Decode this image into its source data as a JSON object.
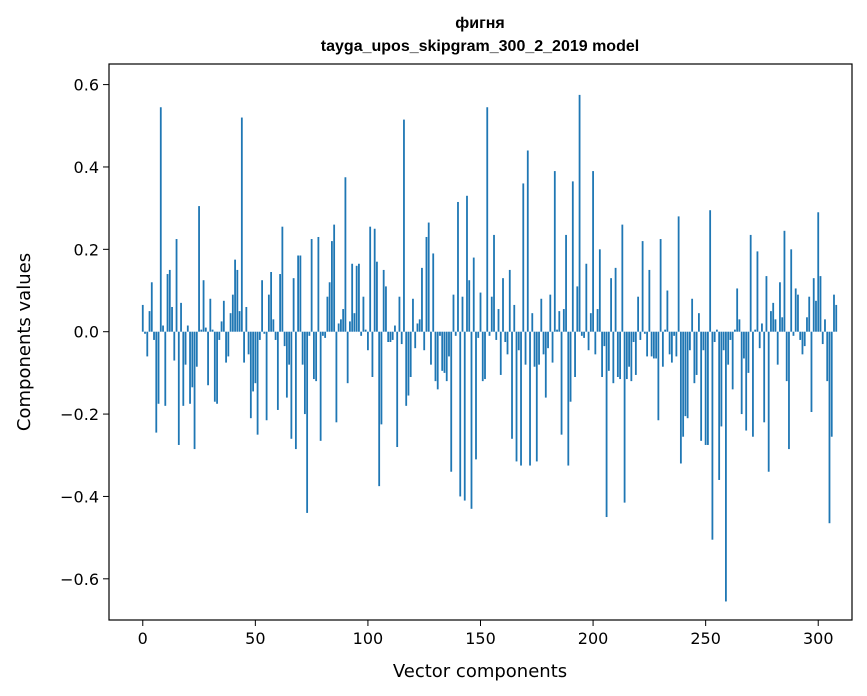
{
  "chart_data": {
    "type": "bar",
    "title": "фигня",
    "subtitle": "tayga_upos_skipgram_300_2_2019 model",
    "xlabel": "Vector components",
    "ylabel": "Components values",
    "xlim": [
      -15,
      315
    ],
    "ylim": [
      -0.7,
      0.65
    ],
    "xticks": [
      0,
      50,
      100,
      150,
      200,
      250,
      300
    ],
    "xtick_labels": [
      "0",
      "50",
      "100",
      "150",
      "200",
      "250",
      "300"
    ],
    "yticks": [
      0.6,
      0.4,
      0.2,
      0.0,
      -0.2,
      -0.4,
      -0.6
    ],
    "ytick_labels": [
      "0.6",
      "0.4",
      "0.2",
      "0.0",
      "−0.2",
      "−0.4",
      "−0.6"
    ],
    "grid": false,
    "bar_color": "#1f77b4",
    "series": [
      {
        "name": "Components values",
        "values": [
          0.065,
          -0.005,
          -0.06,
          0.05,
          0.12,
          -0.02,
          -0.245,
          -0.175,
          0.545,
          0.015,
          -0.18,
          0.14,
          0.15,
          0.06,
          -0.07,
          0.225,
          -0.275,
          0.07,
          -0.18,
          -0.08,
          0.015,
          -0.175,
          -0.135,
          -0.285,
          -0.085,
          0.305,
          0.005,
          0.125,
          0.01,
          -0.13,
          0.08,
          0.005,
          -0.17,
          -0.175,
          -0.02,
          0.025,
          0.075,
          -0.075,
          -0.06,
          0.045,
          0.09,
          0.175,
          0.15,
          0.05,
          0.52,
          -0.075,
          0.06,
          -0.055,
          -0.21,
          -0.145,
          -0.125,
          -0.25,
          -0.02,
          0.125,
          -0.005,
          -0.215,
          0.09,
          0.145,
          0.03,
          -0.02,
          -0.19,
          0.14,
          0.255,
          -0.035,
          -0.16,
          -0.08,
          -0.26,
          0.13,
          -0.285,
          0.185,
          0.185,
          -0.08,
          -0.2,
          -0.44,
          -0.01,
          0.225,
          -0.115,
          -0.12,
          0.23,
          -0.265,
          -0.01,
          -0.015,
          0.085,
          0.12,
          0.22,
          0.26,
          -0.22,
          0.02,
          0.03,
          0.055,
          0.375,
          -0.125,
          0.025,
          0.165,
          0.045,
          0.16,
          0.165,
          -0.01,
          0.085,
          0.005,
          -0.045,
          0.255,
          -0.11,
          0.25,
          0.17,
          -0.375,
          -0.225,
          0.15,
          0.11,
          -0.025,
          -0.025,
          -0.02,
          0.015,
          -0.28,
          0.085,
          -0.03,
          0.515,
          -0.18,
          -0.155,
          -0.11,
          0.08,
          -0.04,
          0.02,
          0.03,
          0.155,
          -0.045,
          0.23,
          0.265,
          -0.08,
          0.19,
          -0.12,
          -0.14,
          -0.01,
          -0.095,
          -0.1,
          -0.12,
          -0.06,
          -0.34,
          0.09,
          -0.01,
          0.315,
          -0.4,
          0.085,
          -0.41,
          0.33,
          0.125,
          -0.43,
          0.18,
          -0.31,
          -0.015,
          0.095,
          -0.12,
          -0.115,
          0.545,
          -0.01,
          0.085,
          0.235,
          -0.02,
          0.055,
          -0.105,
          0.13,
          -0.025,
          -0.055,
          0.15,
          -0.26,
          0.065,
          -0.315,
          -0.045,
          -0.325,
          0.36,
          -0.08,
          0.44,
          -0.325,
          0.045,
          -0.085,
          -0.315,
          -0.08,
          0.08,
          -0.055,
          -0.16,
          -0.04,
          0.09,
          -0.075,
          0.39,
          0.005,
          0.05,
          -0.25,
          0.055,
          0.235,
          -0.325,
          -0.17,
          0.365,
          -0.11,
          0.11,
          0.575,
          -0.01,
          -0.015,
          0.165,
          -0.045,
          0.045,
          0.39,
          -0.055,
          0.055,
          0.2,
          -0.11,
          -0.035,
          -0.45,
          -0.095,
          0.13,
          -0.125,
          0.155,
          -0.11,
          -0.115,
          0.26,
          -0.415,
          -0.115,
          -0.085,
          -0.12,
          -0.025,
          -0.105,
          0.085,
          -0.02,
          0.22,
          -0.005,
          -0.06,
          0.15,
          -0.06,
          -0.065,
          -0.065,
          -0.215,
          0.225,
          -0.085,
          0.005,
          0.1,
          -0.055,
          -0.075,
          -0.01,
          -0.06,
          0.28,
          -0.32,
          -0.255,
          -0.205,
          -0.21,
          -0.045,
          0.08,
          -0.125,
          -0.105,
          0.045,
          -0.265,
          -0.045,
          -0.275,
          -0.275,
          0.295,
          -0.505,
          -0.025,
          0.005,
          -0.36,
          -0.23,
          -0.045,
          -0.655,
          -0.08,
          -0.02,
          -0.14,
          0.005,
          0.105,
          0.03,
          -0.2,
          -0.065,
          -0.24,
          -0.1,
          0.235,
          -0.255,
          0.005,
          0.195,
          -0.04,
          0.02,
          -0.22,
          0.135,
          -0.34,
          0.05,
          0.07,
          0.03,
          -0.08,
          0.12,
          0.035,
          0.245,
          -0.12,
          -0.285,
          0.2,
          -0.01,
          0.105,
          0.09,
          -0.02,
          -0.055,
          -0.035,
          0.035,
          0.085,
          -0.195,
          0.13,
          0.075,
          0.29,
          0.135,
          -0.03,
          0.03,
          -0.12,
          -0.465,
          -0.255,
          0.09,
          0.065
        ]
      }
    ]
  }
}
